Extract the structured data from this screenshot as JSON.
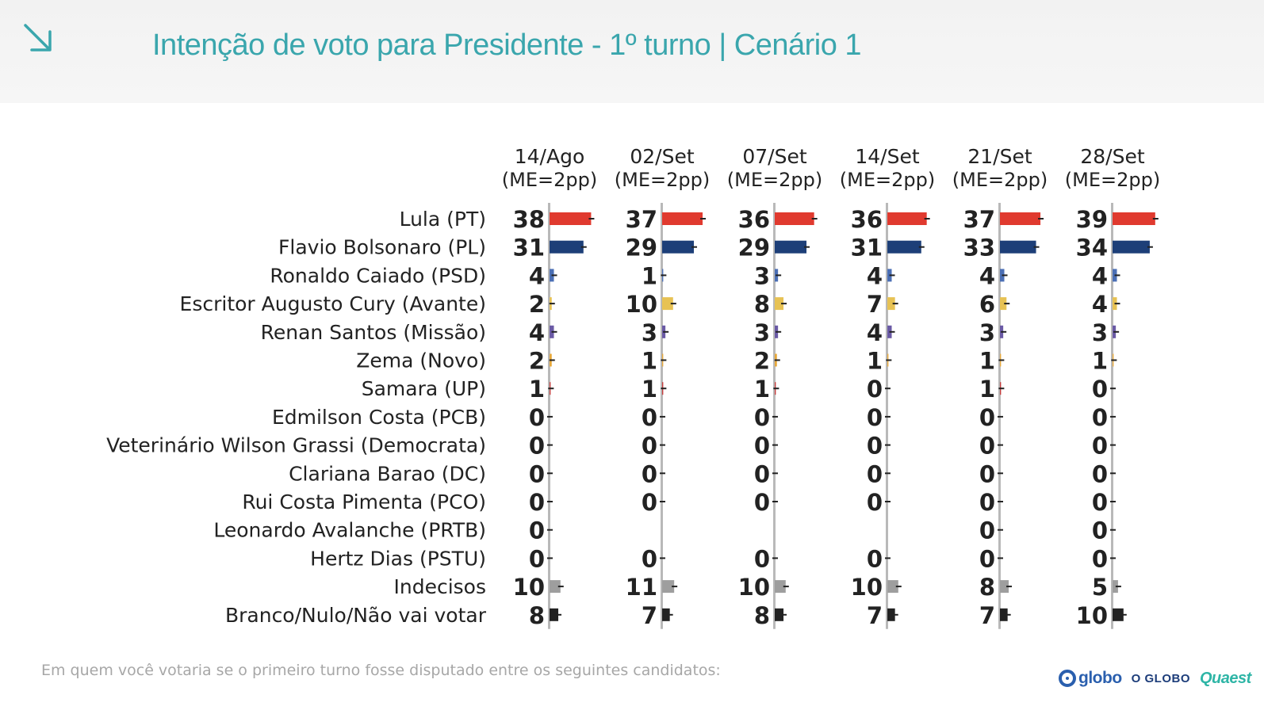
{
  "page": {
    "title": "Intenção de voto para Presidente - 1º turno | Cenário 1",
    "question": "Em quem você votaria se o primeiro turno fosse disputado entre os seguintes candidatos:",
    "logos": {
      "globo": "globo",
      "oglobo": "O GLOBO",
      "quaest": "Quaest"
    },
    "icons": {
      "corner": "arrow-down-right-icon"
    },
    "colors": {
      "title": "#3aa6ad",
      "lula": "#e03a2f",
      "bolsonaro": "#1d3f78",
      "blue_small": "#4b6fb5",
      "yellow": "#e7c254",
      "purple": "#6a5aa5",
      "gray": "#9e9e9e",
      "black": "#222222",
      "axis": "#b9b9b9"
    }
  },
  "chart_data": {
    "type": "bar",
    "columns": [
      {
        "date": "14/Ago",
        "me": "(ME=2pp)"
      },
      {
        "date": "02/Set",
        "me": "(ME=2pp)"
      },
      {
        "date": "07/Set",
        "me": "(ME=2pp)"
      },
      {
        "date": "14/Set",
        "me": "(ME=2pp)"
      },
      {
        "date": "21/Set",
        "me": "(ME=2pp)"
      },
      {
        "date": "28/Set",
        "me": "(ME=2pp)"
      }
    ],
    "rows": [
      {
        "label": "Lula (PT)",
        "color": "#e03a2f",
        "values": [
          38,
          37,
          36,
          36,
          37,
          39
        ]
      },
      {
        "label": "Flavio Bolsonaro (PL)",
        "color": "#1d3f78",
        "values": [
          31,
          29,
          29,
          31,
          33,
          34
        ]
      },
      {
        "label": "Ronaldo Caiado (PSD)",
        "color": "#4b6fb5",
        "values": [
          4,
          1,
          3,
          4,
          4,
          4
        ]
      },
      {
        "label": "Escritor Augusto Cury (Avante)",
        "color": "#e7c254",
        "values": [
          2,
          10,
          8,
          7,
          6,
          4
        ]
      },
      {
        "label": "Renan Santos (Missão)",
        "color": "#6a5aa5",
        "values": [
          4,
          3,
          3,
          4,
          3,
          3
        ]
      },
      {
        "label": "Zema (Novo)",
        "color": "#e7a83a",
        "values": [
          2,
          1,
          2,
          1,
          1,
          1
        ]
      },
      {
        "label": "Samara (UP)",
        "color": "#c43b3b",
        "values": [
          1,
          1,
          1,
          0,
          1,
          0
        ]
      },
      {
        "label": "Edmilson Costa (PCB)",
        "color": "#c43b3b",
        "values": [
          0,
          0,
          0,
          0,
          0,
          0
        ]
      },
      {
        "label": "Veterinário Wilson Grassi (Democrata)",
        "color": "#4b6fb5",
        "values": [
          0,
          0,
          0,
          0,
          0,
          0
        ]
      },
      {
        "label": "Clariana Barao (DC)",
        "color": "#4b6fb5",
        "values": [
          0,
          0,
          0,
          0,
          0,
          0
        ]
      },
      {
        "label": "Rui Costa Pimenta (PCO)",
        "color": "#c43b3b",
        "values": [
          0,
          0,
          0,
          0,
          0,
          0
        ]
      },
      {
        "label": "Leonardo Avalanche (PRTB)",
        "color": "#4b6fb5",
        "values": [
          0,
          null,
          null,
          null,
          0,
          0
        ]
      },
      {
        "label": "Hertz Dias (PSTU)",
        "color": "#c43b3b",
        "values": [
          0,
          0,
          0,
          0,
          0,
          0
        ]
      },
      {
        "label": "Indecisos",
        "color": "#9e9e9e",
        "values": [
          10,
          11,
          10,
          10,
          8,
          5
        ]
      },
      {
        "label": "Branco/Nulo/Não vai votar",
        "color": "#222222",
        "values": [
          8,
          7,
          8,
          7,
          7,
          10
        ]
      }
    ],
    "error_bars": true,
    "xlim": [
      0,
      100
    ]
  }
}
